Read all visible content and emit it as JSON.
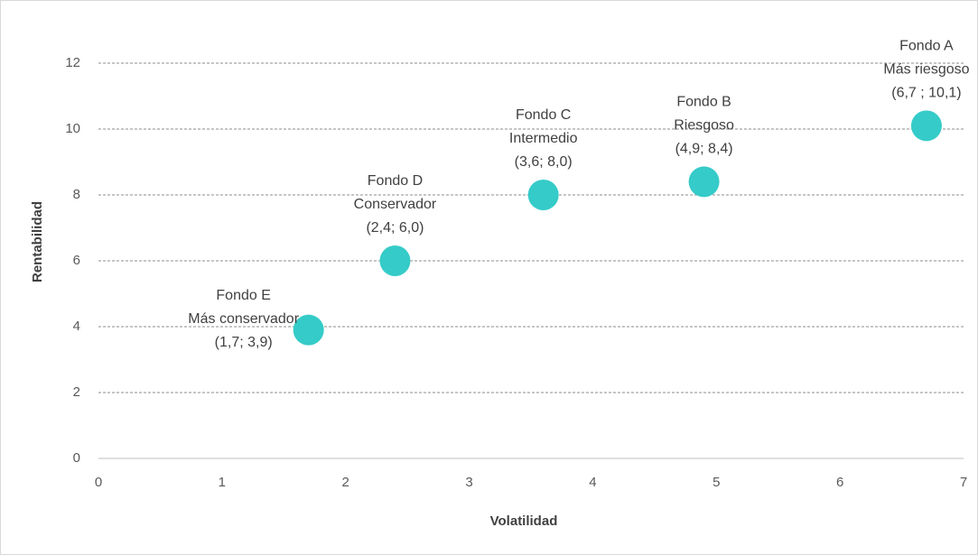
{
  "chart_data": {
    "type": "scatter",
    "x_label": "Volatilidad",
    "y_label": "Rentabilidad",
    "x": [
      1.7,
      2.4,
      3.6,
      4.9,
      6.7
    ],
    "values": [
      3.9,
      6.0,
      8.0,
      8.4,
      10.1
    ],
    "point_labels": [
      [
        "Fondo E",
        "Más conservador",
        "(1,7; 3,9)"
      ],
      [
        "Fondo D",
        "Conservador",
        "(2,4; 6,0)"
      ],
      [
        "Fondo C",
        "Intermedio",
        "(3,6; 8,0)"
      ],
      [
        "Fondo B",
        "Riesgoso",
        "(4,9; 8,4)"
      ],
      [
        "Fondo A",
        "Más riesgoso",
        "(6,7 ; 10,1)"
      ]
    ],
    "color": "#35cbc8",
    "xlim": [
      0,
      7
    ],
    "xticks": [
      0,
      1,
      2,
      3,
      4,
      5,
      6,
      7
    ],
    "ylim": [
      0,
      12
    ],
    "yticks": [
      0,
      2,
      4,
      6,
      8,
      10,
      12
    ],
    "grid": true
  }
}
